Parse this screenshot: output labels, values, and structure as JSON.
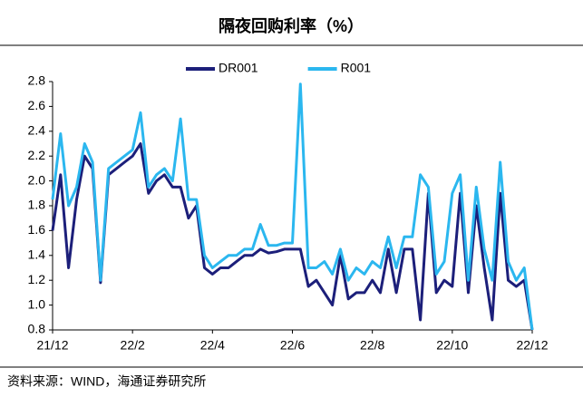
{
  "chart_data": {
    "type": "line",
    "title": "隔夜回购利率（%）",
    "source": "资料来源：WIND，海通证券研究所",
    "categories": [
      "21/12",
      null,
      null,
      null,
      null,
      null,
      null,
      null,
      null,
      null,
      "22/2",
      null,
      null,
      null,
      null,
      null,
      null,
      null,
      null,
      null,
      "22/4",
      null,
      null,
      null,
      null,
      null,
      null,
      null,
      null,
      null,
      "22/6",
      null,
      null,
      null,
      null,
      null,
      null,
      null,
      null,
      null,
      "22/8",
      null,
      null,
      null,
      null,
      null,
      null,
      null,
      null,
      null,
      "22/10",
      null,
      null,
      null,
      null,
      null,
      null,
      null,
      null,
      null,
      "22/12"
    ],
    "series": [
      {
        "name": "DR001",
        "color": "#1c1f7a",
        "values": [
          1.6,
          2.05,
          1.3,
          1.85,
          2.2,
          2.1,
          1.18,
          2.05,
          2.1,
          2.15,
          2.2,
          2.3,
          1.9,
          2.0,
          2.05,
          1.95,
          1.95,
          1.7,
          1.8,
          1.3,
          1.25,
          1.3,
          1.3,
          1.35,
          1.4,
          1.4,
          1.45,
          1.42,
          1.43,
          1.45,
          1.45,
          1.45,
          1.15,
          1.2,
          1.1,
          1.0,
          1.4,
          1.05,
          1.1,
          1.1,
          1.2,
          1.1,
          1.45,
          1.1,
          1.45,
          1.45,
          0.88,
          1.9,
          1.1,
          1.2,
          1.15,
          1.9,
          1.1,
          1.8,
          1.3,
          0.88,
          1.9,
          1.2,
          1.15,
          1.2,
          0.8
        ]
      },
      {
        "name": "R001",
        "color": "#2bb7ef",
        "values": [
          1.85,
          2.38,
          1.8,
          1.95,
          2.3,
          2.15,
          1.2,
          2.1,
          2.15,
          2.2,
          2.25,
          2.55,
          1.95,
          2.05,
          2.1,
          2.0,
          2.5,
          1.85,
          1.85,
          1.4,
          1.3,
          1.35,
          1.4,
          1.4,
          1.45,
          1.45,
          1.65,
          1.48,
          1.48,
          1.5,
          1.5,
          2.78,
          1.3,
          1.3,
          1.35,
          1.25,
          1.45,
          1.2,
          1.3,
          1.25,
          1.35,
          1.3,
          1.55,
          1.3,
          1.55,
          1.55,
          2.05,
          1.95,
          1.25,
          1.35,
          1.9,
          2.05,
          1.2,
          1.95,
          1.45,
          1.2,
          2.15,
          1.35,
          1.2,
          1.3,
          0.8
        ]
      }
    ],
    "ylim": [
      0.8,
      2.8
    ],
    "yticks": [
      0.8,
      {
        "value": 1,
        "label": "1.0"
      },
      1.2,
      1.4,
      1.6,
      1.8,
      {
        "value": 2,
        "label": "2.0"
      },
      2.2,
      2.4,
      2.6,
      2.8
    ],
    "legend": "top"
  }
}
